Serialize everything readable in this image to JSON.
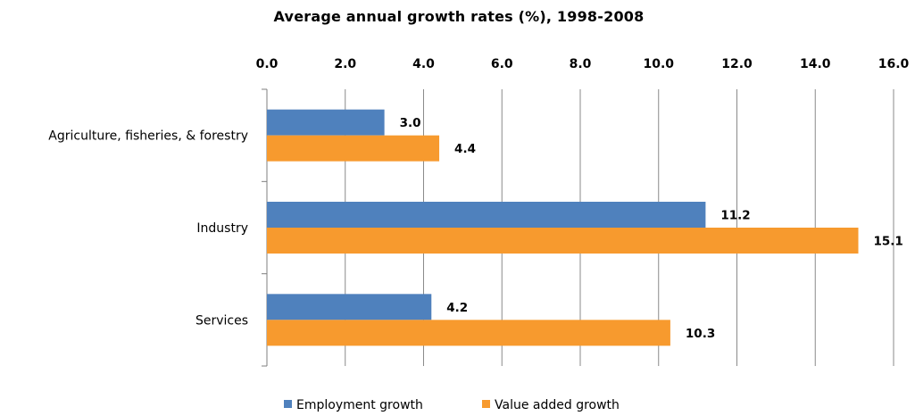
{
  "chart_data": {
    "type": "bar",
    "orientation": "horizontal",
    "title": "Average annual growth rates (%), 1998-2008",
    "categories": [
      "Agriculture, fisheries, & forestry",
      "Industry",
      "Services"
    ],
    "series": [
      {
        "name": "Employment growth",
        "color": "#4f81bd",
        "values": [
          3.0,
          11.2,
          4.2
        ],
        "labels": [
          "3.0",
          "11.2",
          "4.2"
        ]
      },
      {
        "name": "Value added growth",
        "color": "#f79a2e",
        "values": [
          4.4,
          15.1,
          10.3
        ],
        "labels": [
          "4.4",
          "15.1",
          "10.3"
        ]
      }
    ],
    "xlim": [
      0,
      16
    ],
    "xticks": [
      "0.0",
      "2.0",
      "4.0",
      "6.0",
      "8.0",
      "10.0",
      "12.0",
      "14.0",
      "16.0"
    ],
    "x_axis_position": "top",
    "grid": true,
    "legend_position": "bottom"
  }
}
